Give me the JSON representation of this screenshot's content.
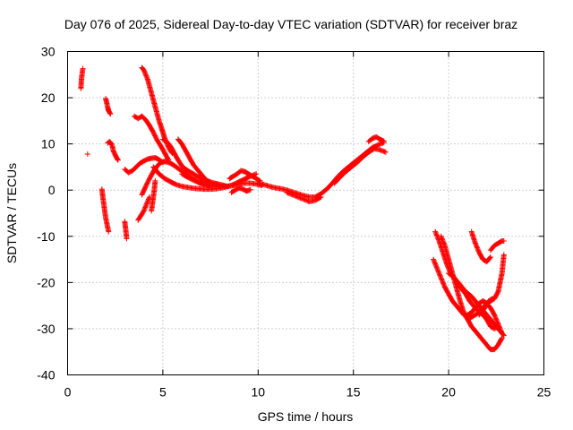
{
  "chart_data": {
    "type": "scatter",
    "title": "Day 076 of 2025, Sidereal Day-to-day VTEC variation (SDTVAR) for receiver braz",
    "xlabel": "GPS time / hours",
    "ylabel": "SDTVAR / TECUs",
    "xlim": [
      0,
      25
    ],
    "ylim": [
      -40,
      30
    ],
    "xticks": [
      0,
      5,
      10,
      15,
      20,
      25
    ],
    "yticks": [
      -40,
      -30,
      -20,
      -10,
      0,
      10,
      20,
      30
    ],
    "grid": true,
    "marker": "plus",
    "color": "#ff0000",
    "series": [
      {
        "name": "a",
        "x": [
          0.7,
          0.72,
          0.74,
          0.76,
          0.78,
          0.8
        ],
        "y": [
          22,
          23.5,
          24.5,
          25,
          25.8,
          26.3
        ]
      },
      {
        "name": "b",
        "x": [
          1.05
        ],
        "y": [
          7.8
        ]
      },
      {
        "name": "c",
        "x": [
          1.8,
          1.85,
          1.9,
          1.95,
          2.0,
          2.05,
          2.1,
          2.15
        ],
        "y": [
          0.2,
          -1.5,
          -3,
          -4.5,
          -6,
          -7,
          -8,
          -9
        ]
      },
      {
        "name": "d",
        "x": [
          2.0,
          2.05,
          2.1,
          2.15,
          2.2,
          2.25
        ],
        "y": [
          19.8,
          19,
          18,
          17.2,
          16.8,
          16.5
        ]
      },
      {
        "name": "e",
        "x": [
          2.1,
          2.2,
          2.3,
          2.35,
          2.4,
          2.5,
          2.55,
          2.6,
          2.65
        ],
        "y": [
          10.2,
          10.5,
          10,
          9.5,
          8.5,
          7.6,
          7.2,
          6.8,
          6.5
        ]
      },
      {
        "name": "f",
        "x": [
          3.0,
          3.05,
          3.1
        ],
        "y": [
          -6.8,
          -8.5,
          -10.5
        ]
      },
      {
        "name": "g",
        "x": [
          3.0,
          3.2,
          3.4,
          3.6,
          3.8,
          4.0,
          4.2,
          4.4,
          4.6,
          4.8,
          5.0
        ],
        "y": [
          4.5,
          3.8,
          4.2,
          5,
          5.8,
          6.3,
          6.7,
          6.9,
          7,
          6.6,
          6
        ]
      },
      {
        "name": "h",
        "x": [
          3.5,
          3.7,
          3.9,
          4.1,
          4.3,
          4.5,
          4.7,
          4.9,
          5.1,
          5.3
        ],
        "y": [
          16,
          15.5,
          16,
          15.2,
          14,
          12.5,
          10.8,
          9.5,
          8,
          6.5
        ]
      },
      {
        "name": "i",
        "x": [
          3.9,
          4.0,
          4.1,
          4.2,
          4.3,
          4.4,
          4.5,
          4.6,
          4.7,
          4.8,
          4.9,
          5.0,
          5.1,
          5.2,
          5.3,
          5.4,
          5.5
        ],
        "y": [
          26.5,
          26,
          25,
          24,
          22.5,
          21,
          19.5,
          18,
          16.5,
          15,
          13.8,
          12.5,
          11.2,
          10.2,
          9.2,
          8.5,
          8
        ]
      },
      {
        "name": "j",
        "x": [
          3.7,
          3.8,
          3.9,
          4.0,
          4.1,
          4.2,
          4.3
        ],
        "y": [
          -6.5,
          -5.8,
          -5.2,
          -4.5,
          -3.5,
          -2.5,
          -1.5
        ]
      },
      {
        "name": "k",
        "x": [
          4.4,
          4.45,
          4.5,
          4.55,
          4.6
        ],
        "y": [
          -4.5,
          -3,
          -1.5,
          0,
          2
        ]
      },
      {
        "name": "l",
        "x": [
          3.9,
          4.1,
          4.3,
          4.5,
          4.7,
          4.9,
          5.1,
          5.3,
          5.5,
          5.7,
          5.9,
          6.1,
          6.3,
          6.5,
          6.7,
          6.9,
          7.1,
          7.3,
          7.5
        ],
        "y": [
          -1,
          0.8,
          2.5,
          4,
          5.2,
          6,
          6.2,
          6,
          5.6,
          5,
          4.4,
          3.8,
          3.2,
          2.6,
          2.1,
          1.7,
          1.4,
          1.1,
          0.9
        ]
      },
      {
        "name": "m",
        "x": [
          5.0,
          5.2,
          5.4,
          5.6,
          5.8,
          6.0,
          6.2,
          6.4,
          6.6,
          6.8,
          7.0,
          7.2,
          7.4,
          7.6,
          7.8,
          8.0,
          8.2,
          8.4
        ],
        "y": [
          11,
          10.5,
          9.5,
          8,
          6.5,
          5.2,
          4.5,
          4,
          3.5,
          3,
          2.6,
          2.2,
          1.9,
          1.6,
          1.4,
          1.2,
          1,
          0.8
        ]
      },
      {
        "name": "n",
        "x": [
          5.8,
          6.0,
          6.2,
          6.4,
          6.6,
          6.8,
          7.0,
          7.2,
          7.4
        ],
        "y": [
          11,
          10,
          8.5,
          7,
          5.5,
          4.5,
          3.5,
          2.5,
          1.8
        ]
      },
      {
        "name": "o",
        "x": [
          4.5,
          4.8,
          5.1,
          5.4,
          5.7,
          6.0,
          6.3,
          6.6,
          6.9,
          7.2,
          7.5,
          7.8,
          8.1,
          8.4,
          8.7,
          9.0,
          9.3,
          9.6,
          9.9,
          10.2
        ],
        "y": [
          5,
          3.5,
          2.5,
          1.8,
          1.2,
          0.8,
          0.6,
          0.4,
          0.3,
          0.2,
          0.2,
          0.3,
          0.5,
          0.8,
          1,
          1.3,
          1.5,
          1.5,
          1.3,
          1
        ]
      },
      {
        "name": "p",
        "x": [
          6.0,
          6.3,
          6.6,
          6.9,
          7.2,
          7.5,
          7.8,
          8.1,
          8.4,
          8.7,
          9.0,
          9.3,
          9.6,
          9.9
        ],
        "y": [
          3.5,
          2.8,
          2.2,
          1.6,
          1.2,
          1,
          0.8,
          0.7,
          0.8,
          1.2,
          1.8,
          2.4,
          3,
          3.5
        ]
      },
      {
        "name": "q",
        "x": [
          8.5,
          8.7,
          8.9,
          9.1,
          9.3,
          9.5,
          9.7,
          9.9,
          10.1
        ],
        "y": [
          2.5,
          3,
          3.5,
          4.2,
          4,
          3.5,
          3,
          2.5,
          2
        ]
      },
      {
        "name": "r",
        "x": [
          8.6,
          8.8,
          9.0,
          9.2,
          9.4,
          9.6
        ],
        "y": [
          -0.5,
          0,
          0.5,
          0.2,
          -0.2,
          0.1
        ]
      },
      {
        "name": "s",
        "x": [
          10.0,
          10.3,
          10.6,
          10.9,
          11.2,
          11.5,
          11.8,
          12.1,
          12.4,
          12.7,
          13.0,
          13.3,
          13.6,
          13.9,
          14.2,
          14.5,
          14.8,
          15.1,
          15.4,
          15.7,
          16.0,
          16.3,
          16.6
        ],
        "y": [
          1.5,
          1.2,
          0.8,
          0.5,
          0.3,
          0,
          -0.4,
          -0.8,
          -1.2,
          -1.5,
          -1.5,
          -0.8,
          0.2,
          1.5,
          3,
          4.2,
          5.2,
          6.2,
          7.2,
          8.2,
          9.2,
          9.8,
          10.3
        ]
      },
      {
        "name": "t",
        "x": [
          11.5,
          11.8,
          12.1,
          12.4,
          12.7,
          13.0,
          13.3
        ],
        "y": [
          -0.5,
          -1,
          -1.5,
          -2,
          -2.5,
          -2.2,
          -1.5
        ]
      },
      {
        "name": "u",
        "x": [
          14.0,
          14.3,
          14.6,
          14.9,
          15.2,
          15.5,
          15.8,
          16.1,
          16.4,
          16.7
        ],
        "y": [
          1.5,
          2.8,
          4,
          5,
          6,
          7.2,
          8.2,
          9,
          8.7,
          8.2
        ]
      },
      {
        "name": "v",
        "x": [
          15.8,
          16.0,
          16.2,
          16.4,
          16.6
        ],
        "y": [
          10.5,
          11.2,
          11.5,
          11,
          10.6
        ]
      },
      {
        "name": "w",
        "x": [
          19.3,
          19.5,
          19.7,
          19.9,
          20.1,
          20.3,
          20.5,
          20.7,
          20.9,
          21.1,
          21.3,
          21.5,
          21.7,
          21.9,
          22.1,
          22.3
        ],
        "y": [
          -9,
          -11,
          -13.5,
          -16,
          -18,
          -19,
          -20.5,
          -21.5,
          -22.5,
          -24,
          -25,
          -26,
          -26.5,
          -25.5,
          -24,
          -23.5
        ]
      },
      {
        "name": "x",
        "x": [
          19.2,
          19.4,
          19.6,
          19.8,
          20.0,
          20.2,
          20.4,
          20.6,
          20.8,
          21.0,
          21.2,
          21.4,
          21.6,
          21.8,
          22.0,
          22.2,
          22.4,
          22.6,
          22.8
        ],
        "y": [
          -15,
          -17,
          -19,
          -21,
          -22.5,
          -24,
          -25,
          -26,
          -27,
          -27,
          -26.5,
          -25.5,
          -24.5,
          -24,
          -24.5,
          -25.5,
          -27,
          -29,
          -31
        ]
      },
      {
        "name": "y",
        "x": [
          19.6,
          19.8,
          20.0,
          20.2,
          20.4,
          20.6,
          20.8,
          21.0,
          21.2,
          21.4,
          21.6,
          21.8,
          22.0,
          22.2,
          22.4,
          22.6,
          22.8
        ],
        "y": [
          -10,
          -12,
          -15,
          -18,
          -21,
          -24,
          -26.5,
          -28,
          -29.5,
          -30.5,
          -31.5,
          -32.5,
          -33.5,
          -34.5,
          -34.5,
          -33.5,
          -32
        ]
      },
      {
        "name": "z",
        "x": [
          20.0,
          20.3,
          20.6,
          20.9,
          21.2,
          21.5,
          21.8,
          22.1,
          22.4,
          22.7,
          22.9
        ],
        "y": [
          -18,
          -19,
          -20.5,
          -22,
          -23,
          -24.5,
          -26,
          -27.5,
          -29,
          -30.5,
          -31.5
        ]
      },
      {
        "name": "aa",
        "x": [
          21.2,
          21.4,
          21.6,
          21.8,
          22.0,
          22.2
        ],
        "y": [
          -9,
          -11.5,
          -13.5,
          -15,
          -15.5,
          -14.5
        ]
      },
      {
        "name": "ab",
        "x": [
          22.2,
          22.4,
          22.6,
          22.8,
          22.9
        ],
        "y": [
          -13,
          -12,
          -11.5,
          -11,
          -11
        ]
      },
      {
        "name": "ac",
        "x": [
          21.6,
          21.8,
          22.0,
          22.2,
          22.4,
          22.6,
          22.8,
          22.9
        ],
        "y": [
          -27,
          -25.5,
          -24.5,
          -24,
          -23.5,
          -22,
          -18,
          -14
        ]
      },
      {
        "name": "ad",
        "x": [
          21.0,
          21.2,
          21.4,
          21.6,
          21.8,
          22.0,
          22.2,
          22.4,
          22.6
        ],
        "y": [
          -28,
          -27.5,
          -27,
          -26.5,
          -27,
          -28,
          -29.5,
          -30,
          -29.5
        ]
      }
    ]
  }
}
